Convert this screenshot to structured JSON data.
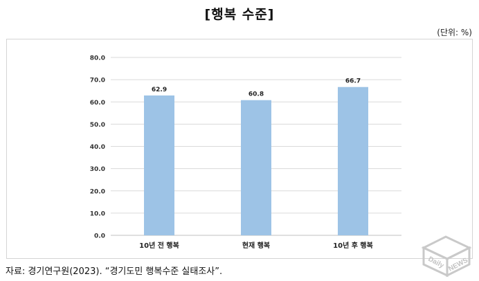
{
  "title": "[행복 수준]",
  "unit": "(단위: %)",
  "source": "자료: 경기연구원(2023). “경기도민 행복수준 실태조사”.",
  "watermark": {
    "line1": "Daily",
    "line2": "NEWS"
  },
  "colors": {
    "bar": "#9dc3e6",
    "grid": "#d9d9d9",
    "axis": "#bfbfbf"
  },
  "chart_data": {
    "type": "bar",
    "categories": [
      "10년 전 행복",
      "현재 행복",
      "10년 후 행복"
    ],
    "values": [
      62.9,
      60.8,
      66.7
    ],
    "value_labels": [
      "62.9",
      "60.8",
      "66.7"
    ],
    "ylim": [
      0,
      80
    ],
    "yticks": [
      "0.0",
      "10.0",
      "20.0",
      "30.0",
      "40.0",
      "50.0",
      "60.0",
      "70.0",
      "80.0"
    ],
    "grid": true
  }
}
